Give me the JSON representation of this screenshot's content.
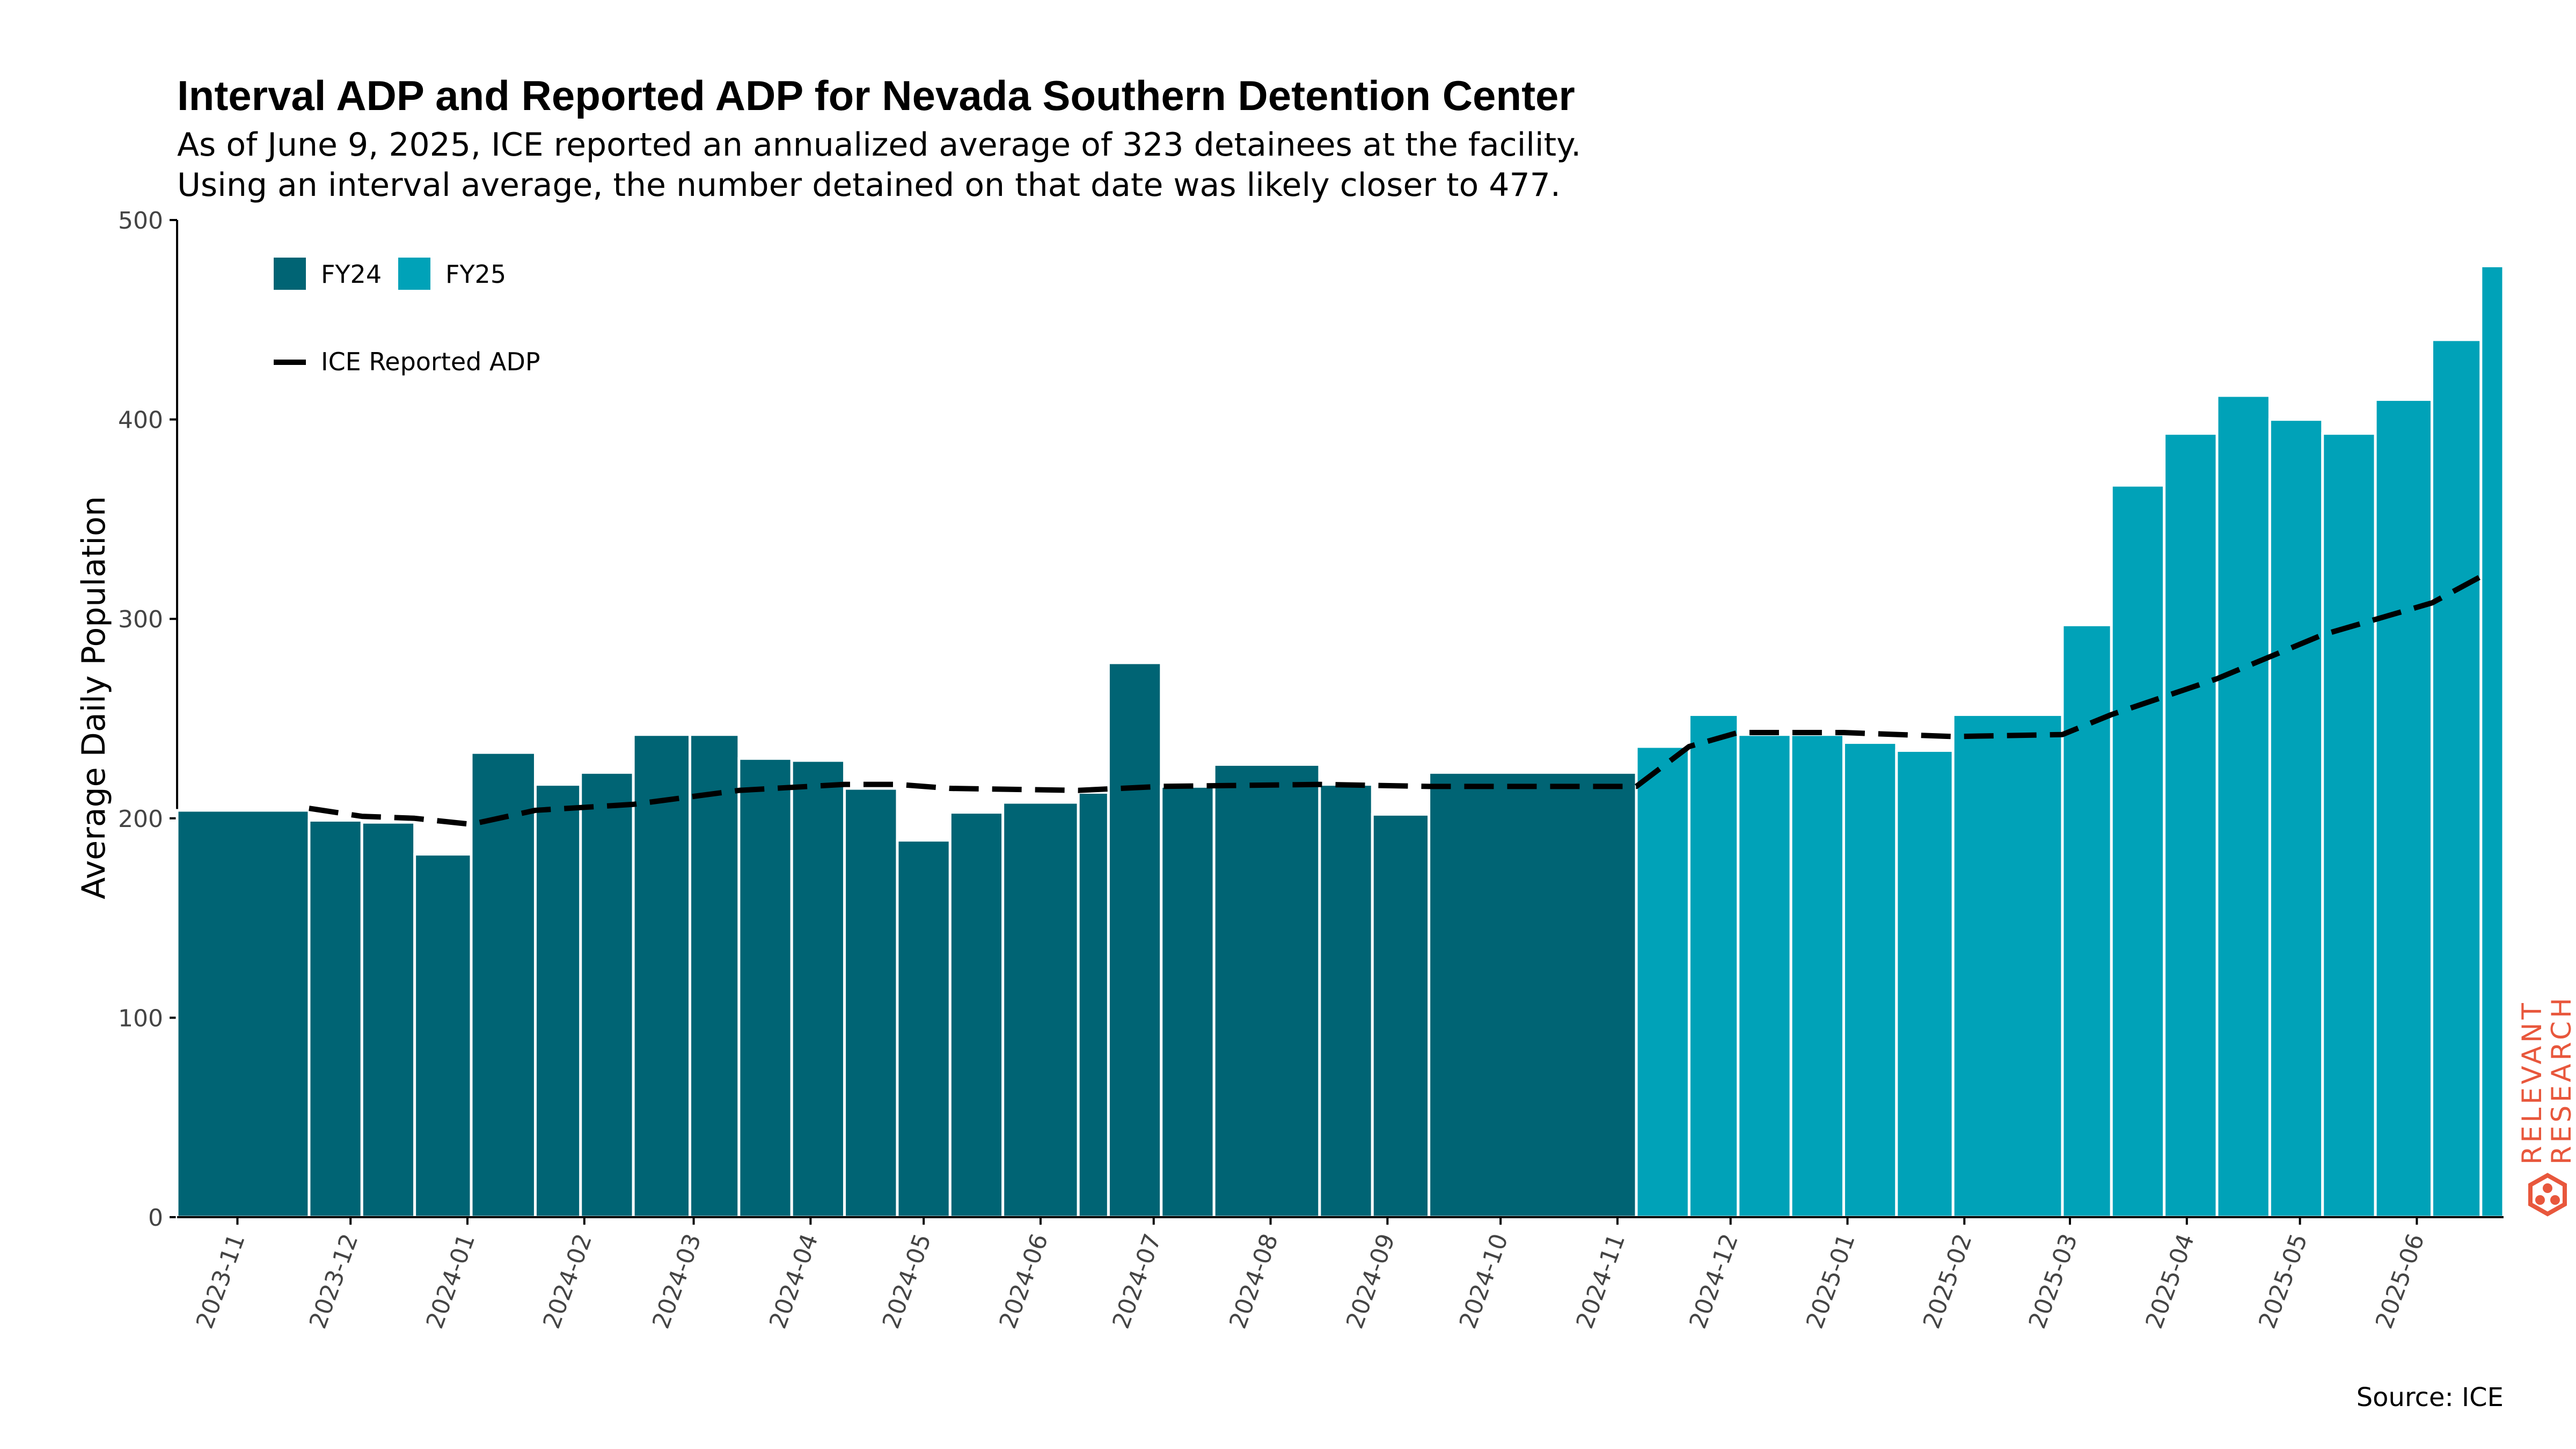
{
  "chart_data": {
    "type": "bar",
    "title": "Interval ADP and Reported ADP for Nevada Southern Detention Center",
    "subtitle": [
      "As of June 9, 2025, ICE reported an annualized average of 323 detainees at the facility.",
      "Using an interval average, the number detained on that date was likely closer to 477."
    ],
    "ylabel": "Average Daily Population",
    "ylim": [
      0,
      500
    ],
    "yticks": [
      0,
      100,
      200,
      300,
      400,
      500
    ],
    "xlim": [
      "2023-10-16",
      "2025-06-24"
    ],
    "xticks": [
      "2023-11",
      "2023-12",
      "2024-01",
      "2024-02",
      "2024-03",
      "2024-04",
      "2024-05",
      "2024-06",
      "2024-07",
      "2024-08",
      "2024-09",
      "2024-10",
      "2024-11",
      "2024-12",
      "2025-01",
      "2025-02",
      "2025-03",
      "2025-04",
      "2025-05",
      "2025-06"
    ],
    "legend": {
      "placement": "top-left",
      "bar_entries": [
        {
          "label": "FY24",
          "color": "#006474"
        },
        {
          "label": "FY25",
          "color": "#00a2b8"
        }
      ],
      "line_entry": {
        "label": "ICE Reported ADP",
        "color": "#000000",
        "style": "dashed"
      }
    },
    "bars": [
      {
        "start": "2023-10-16",
        "end": "2023-11-20",
        "value": 204,
        "fy": "FY24"
      },
      {
        "start": "2023-11-20",
        "end": "2023-12-04",
        "value": 199,
        "fy": "FY24"
      },
      {
        "start": "2023-12-04",
        "end": "2023-12-18",
        "value": 198,
        "fy": "FY24"
      },
      {
        "start": "2023-12-18",
        "end": "2024-01-02",
        "value": 182,
        "fy": "FY24"
      },
      {
        "start": "2024-01-02",
        "end": "2024-01-19",
        "value": 233,
        "fy": "FY24"
      },
      {
        "start": "2024-01-19",
        "end": "2024-01-31",
        "value": 217,
        "fy": "FY24"
      },
      {
        "start": "2024-01-31",
        "end": "2024-02-14",
        "value": 223,
        "fy": "FY24"
      },
      {
        "start": "2024-02-14",
        "end": "2024-02-29",
        "value": 242,
        "fy": "FY24"
      },
      {
        "start": "2024-02-29",
        "end": "2024-03-13",
        "value": 242,
        "fy": "FY24"
      },
      {
        "start": "2024-03-13",
        "end": "2024-03-27",
        "value": 230,
        "fy": "FY24"
      },
      {
        "start": "2024-03-27",
        "end": "2024-04-10",
        "value": 229,
        "fy": "FY24"
      },
      {
        "start": "2024-04-10",
        "end": "2024-04-24",
        "value": 215,
        "fy": "FY24"
      },
      {
        "start": "2024-04-24",
        "end": "2024-05-08",
        "value": 189,
        "fy": "FY24"
      },
      {
        "start": "2024-05-08",
        "end": "2024-05-22",
        "value": 203,
        "fy": "FY24"
      },
      {
        "start": "2024-05-22",
        "end": "2024-06-11",
        "value": 208,
        "fy": "FY24"
      },
      {
        "start": "2024-06-11",
        "end": "2024-06-19",
        "value": 213,
        "fy": "FY24"
      },
      {
        "start": "2024-06-19",
        "end": "2024-07-03",
        "value": 278,
        "fy": "FY24"
      },
      {
        "start": "2024-07-03",
        "end": "2024-07-17",
        "value": 216,
        "fy": "FY24"
      },
      {
        "start": "2024-07-17",
        "end": "2024-08-14",
        "value": 227,
        "fy": "FY24"
      },
      {
        "start": "2024-08-14",
        "end": "2024-08-28",
        "value": 217,
        "fy": "FY24"
      },
      {
        "start": "2024-08-28",
        "end": "2024-09-12",
        "value": 202,
        "fy": "FY24"
      },
      {
        "start": "2024-09-12",
        "end": "2024-11-06",
        "value": 223,
        "fy": "FY24"
      },
      {
        "start": "2024-11-06",
        "end": "2024-11-20",
        "value": 236,
        "fy": "FY25"
      },
      {
        "start": "2024-11-20",
        "end": "2024-12-03",
        "value": 252,
        "fy": "FY25"
      },
      {
        "start": "2024-12-03",
        "end": "2024-12-17",
        "value": 242,
        "fy": "FY25"
      },
      {
        "start": "2024-12-17",
        "end": "2024-12-31",
        "value": 242,
        "fy": "FY25"
      },
      {
        "start": "2024-12-31",
        "end": "2025-01-14",
        "value": 238,
        "fy": "FY25"
      },
      {
        "start": "2025-01-14",
        "end": "2025-01-29",
        "value": 234,
        "fy": "FY25"
      },
      {
        "start": "2025-01-29",
        "end": "2025-02-27",
        "value": 252,
        "fy": "FY25"
      },
      {
        "start": "2025-02-27",
        "end": "2025-03-12",
        "value": 297,
        "fy": "FY25"
      },
      {
        "start": "2025-03-12",
        "end": "2025-03-26",
        "value": 367,
        "fy": "FY25"
      },
      {
        "start": "2025-03-26",
        "end": "2025-04-09",
        "value": 393,
        "fy": "FY25"
      },
      {
        "start": "2025-04-09",
        "end": "2025-04-23",
        "value": 412,
        "fy": "FY25"
      },
      {
        "start": "2025-04-23",
        "end": "2025-05-07",
        "value": 400,
        "fy": "FY25"
      },
      {
        "start": "2025-05-07",
        "end": "2025-05-21",
        "value": 393,
        "fy": "FY25"
      },
      {
        "start": "2025-05-21",
        "end": "2025-06-05",
        "value": 410,
        "fy": "FY25"
      },
      {
        "start": "2025-06-05",
        "end": "2025-06-18",
        "value": 440,
        "fy": "FY25"
      },
      {
        "start": "2025-06-18",
        "end": "2025-07-02",
        "value": 477,
        "fy": "FY25"
      }
    ],
    "line": {
      "name": "ICE Reported ADP",
      "points": [
        [
          "2023-11-20",
          205
        ],
        [
          "2023-12-04",
          201
        ],
        [
          "2023-12-18",
          200
        ],
        [
          "2024-01-02",
          197
        ],
        [
          "2024-01-19",
          204
        ],
        [
          "2024-02-14",
          207
        ],
        [
          "2024-03-13",
          214
        ],
        [
          "2024-04-10",
          217
        ],
        [
          "2024-04-24",
          217
        ],
        [
          "2024-05-08",
          215
        ],
        [
          "2024-06-11",
          214
        ],
        [
          "2024-07-03",
          216
        ],
        [
          "2024-08-14",
          217
        ],
        [
          "2024-09-12",
          216
        ],
        [
          "2024-11-06",
          216
        ],
        [
          "2024-11-20",
          236
        ],
        [
          "2024-12-03",
          243
        ],
        [
          "2024-12-31",
          243
        ],
        [
          "2025-01-29",
          241
        ],
        [
          "2025-02-27",
          242
        ],
        [
          "2025-03-12",
          252
        ],
        [
          "2025-04-09",
          270
        ],
        [
          "2025-05-07",
          292
        ],
        [
          "2025-06-05",
          308
        ],
        [
          "2025-07-02",
          323
        ]
      ]
    },
    "source": "Source: ICE",
    "watermark": "RELEVANT RESEARCH"
  }
}
